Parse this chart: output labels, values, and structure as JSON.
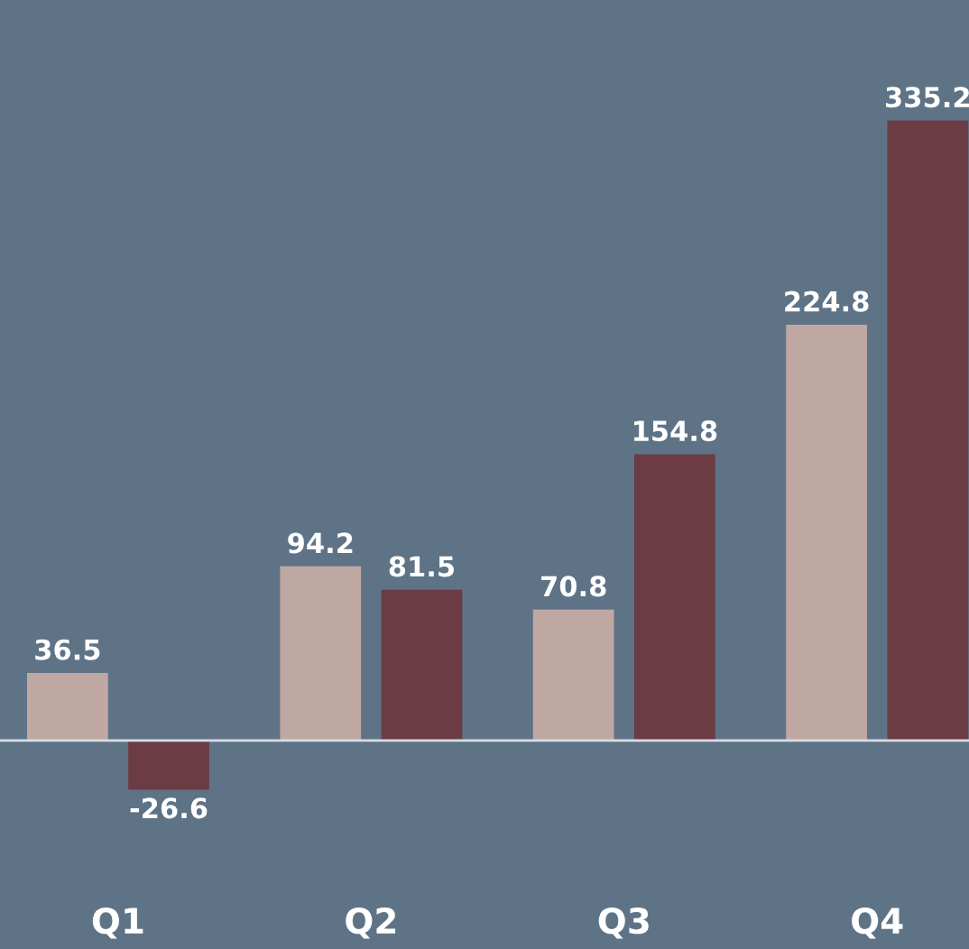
{
  "chart_data": {
    "type": "bar",
    "categories": [
      "Q1",
      "Q2",
      "Q3",
      "Q4"
    ],
    "series": [
      {
        "color": "#c0a8a2",
        "values": [
          36.5,
          94.2,
          70.8,
          224.8
        ]
      },
      {
        "color": "#6b3c44",
        "values": [
          -26.6,
          81.5,
          154.8,
          335.2
        ]
      }
    ],
    "data_labels": true,
    "grid": false,
    "legend": false
  }
}
